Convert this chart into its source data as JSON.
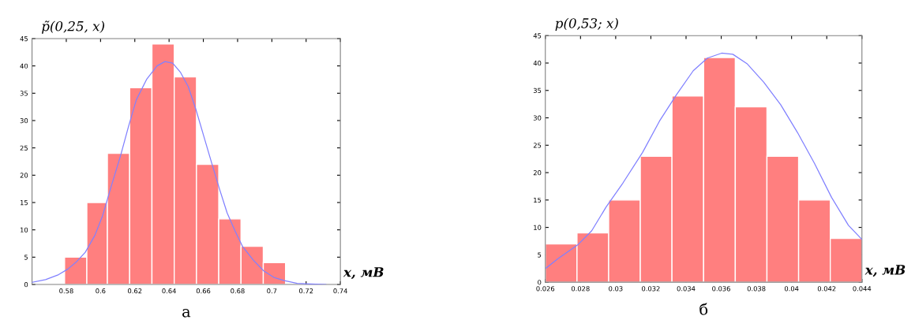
{
  "chart_data": [
    {
      "type": "histogram",
      "ylabel": "p̃(0,25, x)",
      "xlabel": "x, мВ",
      "annotations": [
        "а"
      ],
      "color": "#ff7f7f",
      "grid": false,
      "bins": [
        0.579,
        0.592,
        0.604,
        0.617,
        0.63,
        0.643,
        0.656,
        0.669,
        0.682,
        0.695,
        0.708
      ],
      "values": [
        5,
        15,
        24,
        36,
        44,
        38,
        22,
        12,
        7,
        4
      ],
      "series": [
        {
          "type": "line",
          "color": "#8080ff",
          "x": [
            0.56,
            0.5679,
            0.5755,
            0.5808,
            0.5861,
            0.5911,
            0.5967,
            0.6012,
            0.6058,
            0.6118,
            0.6164,
            0.6209,
            0.627,
            0.633,
            0.6376,
            0.6421,
            0.6467,
            0.6512,
            0.6558,
            0.6603,
            0.6648,
            0.6694,
            0.6739,
            0.6785,
            0.683,
            0.6891,
            0.6952,
            0.7012,
            0.7073,
            0.7148,
            0.7224,
            0.7315
          ],
          "values": [
            0.4,
            0.9,
            1.8,
            2.8,
            4.2,
            5.9,
            9.0,
            12.6,
            17.5,
            23.7,
            29.0,
            33.8,
            37.6,
            40.0,
            40.8,
            40.5,
            38.8,
            36.2,
            31.9,
            27.1,
            22.3,
            17.5,
            13.1,
            9.8,
            6.9,
            4.5,
            2.5,
            1.3,
            0.7,
            0.2,
            0.1,
            0
          ]
        }
      ],
      "xlim": [
        0.56,
        0.74
      ],
      "xticks": [
        0.58,
        0.6,
        0.62,
        0.64,
        0.66,
        0.68,
        0.7,
        0.72,
        0.74
      ],
      "ylim": [
        0,
        45
      ],
      "yticks": [
        0,
        5,
        10,
        15,
        20,
        25,
        30,
        35,
        40,
        45
      ]
    },
    {
      "type": "histogram",
      "ylabel": "p(0,53; x)",
      "xlabel": "x, мВ",
      "annotations": [
        "б"
      ],
      "color": "#ff7f7f",
      "grid": false,
      "bins": [
        0.026,
        0.0278,
        0.0296,
        0.0314,
        0.0332,
        0.035,
        0.0368,
        0.0386,
        0.0404,
        0.0422,
        0.044
      ],
      "values": [
        7,
        9,
        15,
        23,
        34,
        41,
        32,
        23,
        15,
        8
      ],
      "series": [
        {
          "type": "line",
          "color": "#8080ff",
          "x": [
            0.02605,
            0.02672,
            0.02784,
            0.02864,
            0.02945,
            0.03041,
            0.03153,
            0.03249,
            0.03345,
            0.03441,
            0.03521,
            0.03602,
            0.03666,
            0.03746,
            0.03842,
            0.03938,
            0.04034,
            0.0413,
            0.04227,
            0.04323,
            0.044
          ],
          "values": [
            2.6,
            4.3,
            6.8,
            9.4,
            13.7,
            18.1,
            23.7,
            29.4,
            34.2,
            38.6,
            40.9,
            41.8,
            41.6,
            39.9,
            36.5,
            32.4,
            27.3,
            21.7,
            15.5,
            10.4,
            7.8
          ]
        }
      ],
      "xlim": [
        0.026,
        0.044
      ],
      "xticks": [
        0.026,
        0.028,
        0.03,
        0.032,
        0.034,
        0.036,
        0.038,
        0.04,
        0.042,
        0.044
      ],
      "ylim": [
        0,
        45
      ],
      "yticks": [
        0,
        5,
        10,
        15,
        20,
        25,
        30,
        35,
        40,
        45
      ]
    }
  ]
}
